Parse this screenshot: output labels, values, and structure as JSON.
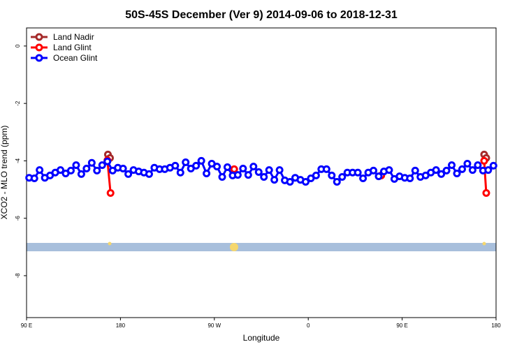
{
  "chart_data": {
    "type": "line",
    "title": "50S-45S December (Ver 9)   2014-09-06 to 2018-12-31",
    "xlabel": "Longitude",
    "ylabel": "XCO2 - MLO trend (ppm)",
    "xlim": [
      90,
      540
    ],
    "ylim": [
      -9.46,
      0.63
    ],
    "xticks": [
      {
        "value": 90,
        "label": "90 E"
      },
      180,
      {
        "value": 270,
        "label": "90 W"
      },
      {
        "value": 360,
        "label": "0"
      },
      {
        "value": 450,
        "label": "90 E"
      },
      {
        "value": 540,
        "label": "180"
      }
    ],
    "yticks": [
      0,
      -2,
      -4,
      -6,
      -8
    ],
    "legend": "top-left",
    "series": [
      {
        "name": "Land Nadir",
        "color": "#a52a2a",
        "x": [
          168,
          170,
          null,
          528.6,
          530.6
        ],
        "values": [
          -3.78,
          -3.9,
          null,
          -3.78,
          -3.9
        ]
      },
      {
        "name": "Land Glint",
        "color": "#ff0000",
        "x": [
          167.5,
          170.5,
          null,
          289,
          null,
          430,
          null,
          528.6,
          530.6
        ],
        "values": [
          -3.98,
          -5.12,
          null,
          -4.29,
          null,
          -4.51,
          null,
          -4.0,
          -5.12
        ]
      },
      {
        "name": "Ocean Glint",
        "color": "#0000ff",
        "x": [
          92.5,
          97.5,
          102.5,
          107.5,
          112.5,
          117.5,
          122.5,
          127.5,
          132.5,
          137.5,
          142.5,
          147.5,
          152.5,
          157.5,
          162.5,
          167.5,
          172.5,
          177.5,
          182.5,
          187.5,
          192.5,
          197.5,
          202.5,
          207.5,
          212.5,
          217.5,
          222.5,
          227.5,
          232.5,
          237.5,
          242.5,
          247.5,
          252.5,
          257.5,
          262.5,
          267.5,
          272.5,
          277.5,
          282.5,
          287.5,
          292.5,
          297.5,
          302.5,
          307.5,
          312.5,
          317.5,
          322.5,
          327.5,
          332.5,
          337.5,
          342.5,
          347.5,
          352.5,
          357.5,
          362.5,
          367.5,
          372.5,
          377.5,
          382.5,
          387.5,
          392.5,
          397.5,
          402.5,
          407.5,
          412.5,
          417.5,
          422.5,
          427.5,
          432.5,
          437.5,
          442.5,
          447.5,
          452.5,
          457.5,
          462.5,
          467.5,
          472.5,
          477.5,
          482.5,
          487.5,
          492.5,
          497.5,
          502.5,
          507.5,
          512.5,
          517.5,
          522.5,
          527.5,
          532.5,
          537.5
        ],
        "values": [
          -4.59,
          -4.61,
          -4.32,
          -4.59,
          -4.51,
          -4.41,
          -4.32,
          -4.44,
          -4.34,
          -4.15,
          -4.46,
          -4.27,
          -4.07,
          -4.34,
          -4.15,
          -4.02,
          -4.34,
          -4.24,
          -4.27,
          -4.46,
          -4.32,
          -4.37,
          -4.41,
          -4.46,
          -4.24,
          -4.29,
          -4.29,
          -4.24,
          -4.17,
          -4.41,
          -4.05,
          -4.27,
          -4.17,
          -4.0,
          -4.44,
          -4.1,
          -4.2,
          -4.56,
          -4.22,
          -4.51,
          -4.49,
          -4.27,
          -4.49,
          -4.2,
          -4.39,
          -4.56,
          -4.32,
          -4.66,
          -4.32,
          -4.68,
          -4.73,
          -4.59,
          -4.66,
          -4.73,
          -4.61,
          -4.51,
          -4.29,
          -4.29,
          -4.51,
          -4.73,
          -4.56,
          -4.41,
          -4.41,
          -4.41,
          -4.61,
          -4.41,
          -4.34,
          -4.54,
          -4.37,
          -4.32,
          -4.63,
          -4.54,
          -4.59,
          -4.61,
          -4.34,
          -4.56,
          -4.51,
          -4.41,
          -4.32,
          -4.46,
          -4.34,
          -4.15,
          -4.44,
          -4.29,
          -4.1,
          -4.32,
          -4.15,
          -4.34,
          -4.32,
          -4.17
        ]
      }
    ]
  }
}
